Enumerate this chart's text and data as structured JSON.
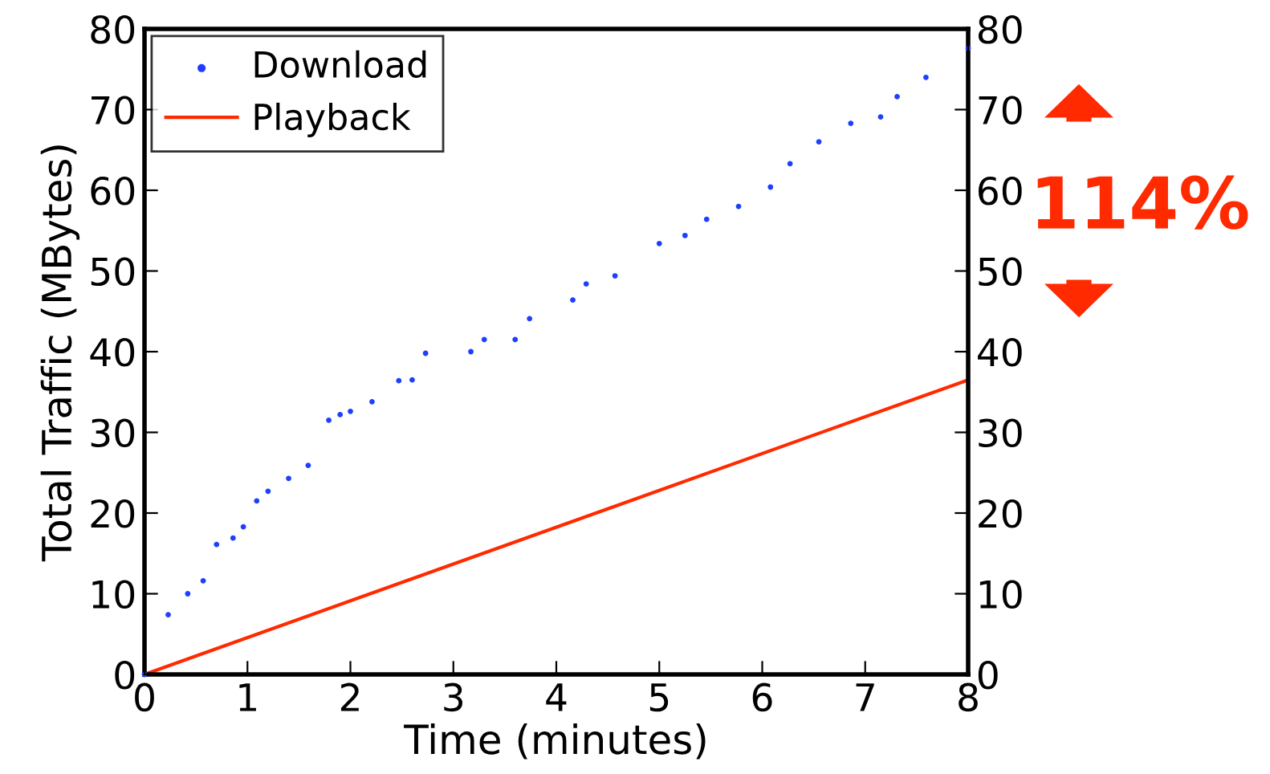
{
  "chart_data": {
    "type": "scatter",
    "xlabel": "Time (minutes)",
    "ylabel": "Total Traffic (MBytes)",
    "xlim": [
      0,
      8
    ],
    "xticks": [
      0,
      1,
      2,
      3,
      4,
      5,
      6,
      7,
      8
    ],
    "ylim": [
      0,
      80
    ],
    "yticks": [
      0,
      10,
      20,
      30,
      40,
      50,
      60,
      70,
      80
    ],
    "y2lim": [
      0,
      80
    ],
    "y2ticks": [
      0,
      10,
      20,
      30,
      40,
      50,
      60,
      70,
      80
    ],
    "legend": "top left",
    "grid": false,
    "marker": "circle",
    "annotations": [
      "114%"
    ],
    "series": [
      {
        "name": "Download",
        "color": "#1f3fff",
        "x": [
          0,
          0.23,
          0.42,
          0.57,
          0.7,
          0.86,
          0.96,
          1.09,
          1.2,
          1.4,
          1.59,
          1.79,
          1.9,
          2.0,
          2.21,
          2.47,
          2.6,
          2.73,
          3.17,
          3.3,
          3.6,
          3.74,
          4.16,
          4.29,
          4.57,
          5.0,
          5.25,
          5.46,
          5.77,
          6.08,
          6.27,
          6.55,
          6.86,
          7.15,
          7.31,
          7.59,
          8.0
        ],
        "values": [
          0,
          7.4,
          10,
          11.6,
          16.1,
          16.9,
          18.3,
          21.5,
          22.7,
          24.3,
          25.9,
          31.5,
          32.2,
          32.6,
          33.8,
          36.4,
          36.5,
          39.8,
          40,
          41.5,
          41.5,
          44.1,
          46.4,
          48.4,
          49.4,
          53.4,
          54.4,
          56.4,
          58.0,
          60.4,
          63.3,
          66.0,
          68.3,
          69.1,
          71.6,
          74.0,
          77.6
        ]
      },
      {
        "name": "Playback",
        "type": "line",
        "color": "#ff2a00",
        "marker": "none",
        "line_style": "solid",
        "x": [
          0,
          8
        ],
        "values": [
          0,
          36.5
        ]
      }
    ]
  }
}
